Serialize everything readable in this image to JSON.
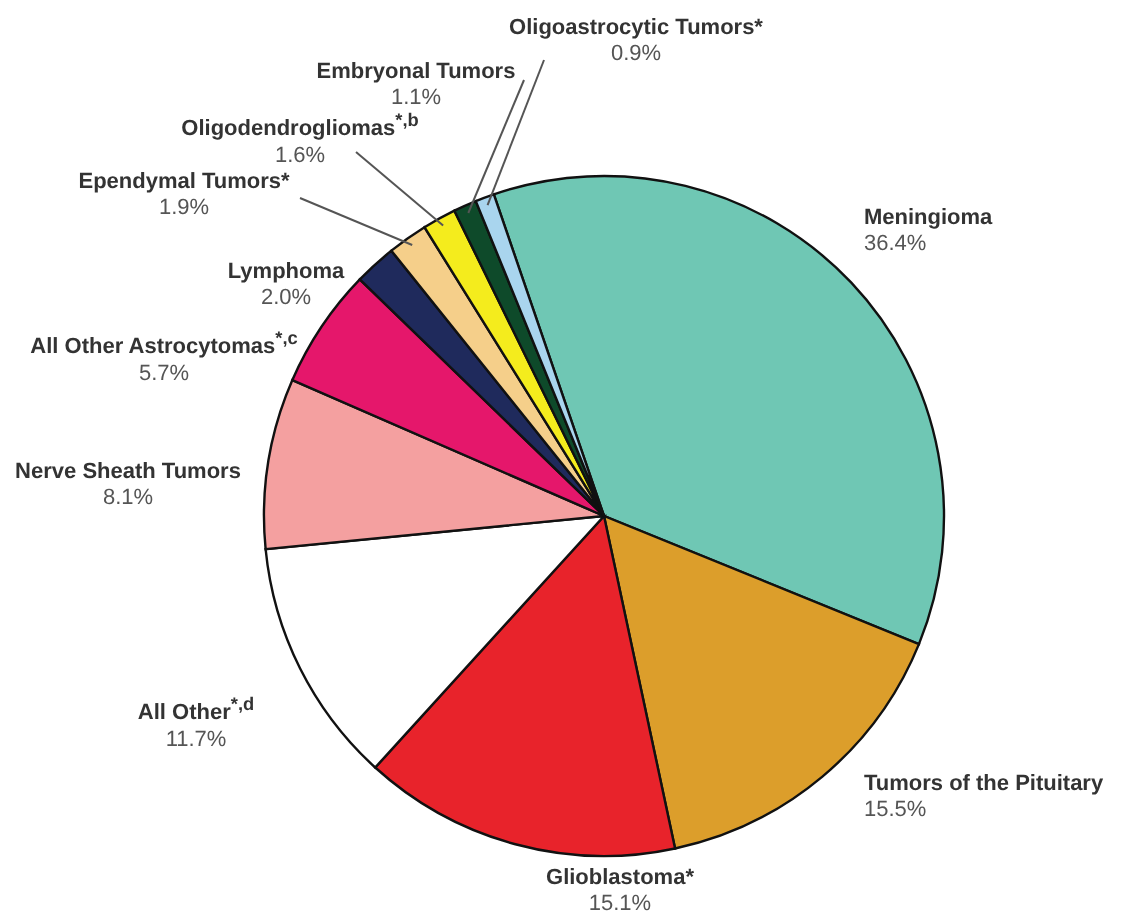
{
  "chart_data": {
    "type": "pie",
    "categories": [
      "Meningioma",
      "Tumors of the Pituitary",
      "Glioblastoma*",
      "All Other$^{*,d}$",
      "Nerve Sheath Tumors",
      "All Other Astrocytomas$^{*,c}$",
      "Lymphoma",
      "Ependymal Tumors*",
      "Oligodendrogliomas$^{*,b}$",
      "Embryonal Tumors",
      "Oligoastrocytic Tumors*"
    ],
    "values": [
      36.4,
      15.5,
      15.1,
      11.7,
      8.1,
      5.7,
      2.0,
      1.9,
      1.6,
      1.1,
      0.9
    ],
    "value_labels": [
      "36.4%",
      "15.5%",
      "15.1%",
      "11.7%",
      "8.1%",
      "5.7%",
      "2.0%",
      "1.9%",
      "1.6%",
      "1.1%",
      "0.9%"
    ],
    "colors": [
      "#6fc7b4",
      "#dc9e2b",
      "#e8232b",
      "#ffffff",
      "#f4a0a0",
      "#e5176b",
      "#1f2a5c",
      "#f5cf8a",
      "#f4ec1d",
      "#0e4a2a",
      "#a9d5ee"
    ]
  }
}
